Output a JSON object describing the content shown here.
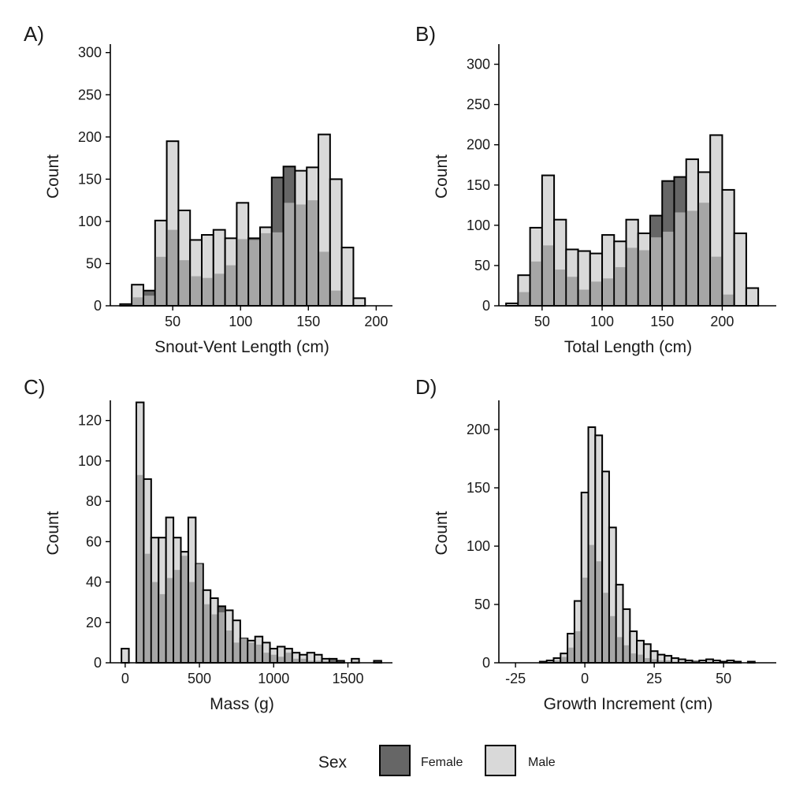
{
  "legend": {
    "title": "Sex",
    "items": [
      {
        "label": "Female",
        "color": "#666666"
      },
      {
        "label": "Male",
        "color": "#d9d9d9"
      }
    ]
  },
  "colors": {
    "female_only": "#666666",
    "male": "#d9d9d9",
    "overlap": "#a6a6a6"
  },
  "chart_data": [
    {
      "panel": "A)",
      "type": "bar",
      "subtype": "overlaid histogram",
      "xlabel": "Snout-Vent Length (cm)",
      "ylabel": "Count",
      "xlim": [
        4,
        212
      ],
      "ylim": [
        0,
        310
      ],
      "xticks": [
        50,
        100,
        150,
        200
      ],
      "yticks": [
        0,
        50,
        100,
        150,
        200,
        250,
        300
      ],
      "bin_width": 8.6,
      "bin_centers": [
        15.5,
        24.1,
        32.7,
        41.3,
        49.9,
        58.5,
        67.1,
        75.7,
        84.3,
        92.9,
        101.5,
        110.1,
        118.7,
        127.3,
        135.9,
        144.5,
        153.1,
        161.7,
        170.3,
        178.9,
        187.5,
        196.1,
        204.7
      ],
      "series": [
        {
          "name": "Female",
          "values": [
            1,
            10,
            18,
            58,
            90,
            54,
            35,
            33,
            38,
            48,
            79,
            80,
            86,
            152,
            165,
            120,
            125,
            64,
            18,
            0,
            0,
            0,
            0
          ]
        },
        {
          "name": "Male",
          "values": [
            2,
            25,
            12,
            101,
            195,
            113,
            78,
            84,
            90,
            80,
            122,
            78,
            93,
            87,
            122,
            160,
            164,
            203,
            150,
            69,
            9,
            0,
            0
          ]
        }
      ]
    },
    {
      "panel": "B)",
      "type": "bar",
      "subtype": "overlaid histogram",
      "xlabel": "Total Length (cm)",
      "ylabel": "Count",
      "xlim": [
        14,
        245
      ],
      "ylim": [
        0,
        325
      ],
      "xticks": [
        50,
        100,
        150,
        200
      ],
      "yticks": [
        0,
        50,
        100,
        150,
        200,
        250,
        300
      ],
      "bin_width": 10.0,
      "bin_centers": [
        25,
        35,
        45,
        55,
        65,
        75,
        85,
        95,
        105,
        115,
        125,
        135,
        145,
        155,
        165,
        175,
        185,
        195,
        205,
        215,
        225,
        235
      ],
      "series": [
        {
          "name": "Female",
          "values": [
            1,
            17,
            55,
            75,
            45,
            36,
            20,
            30,
            34,
            48,
            72,
            69,
            112,
            155,
            160,
            118,
            128,
            61,
            14,
            0,
            0,
            0
          ]
        },
        {
          "name": "Male",
          "values": [
            3,
            38,
            97,
            162,
            107,
            70,
            68,
            65,
            88,
            80,
            107,
            90,
            85,
            92,
            116,
            182,
            166,
            212,
            144,
            90,
            22,
            0
          ]
        }
      ]
    },
    {
      "panel": "C)",
      "type": "bar",
      "subtype": "overlaid histogram",
      "xlabel": "Mass (g)",
      "ylabel": "Count",
      "xlim": [
        -100,
        1800
      ],
      "ylim": [
        0,
        130
      ],
      "xticks": [
        0,
        500,
        1000,
        1500
      ],
      "yticks": [
        0,
        20,
        40,
        60,
        80,
        100,
        120
      ],
      "bin_width": 50,
      "bin_centers": [
        0,
        50,
        100,
        150,
        200,
        250,
        300,
        350,
        400,
        450,
        500,
        550,
        600,
        650,
        700,
        750,
        800,
        850,
        900,
        950,
        1000,
        1050,
        1100,
        1150,
        1200,
        1250,
        1300,
        1350,
        1400,
        1450,
        1500,
        1550,
        1600,
        1650,
        1700
      ],
      "series": [
        {
          "name": "Female",
          "values": [
            0,
            0,
            93,
            54,
            40,
            34,
            42,
            46,
            53,
            40,
            49,
            29,
            24,
            28,
            16,
            10,
            12,
            10,
            9,
            5,
            4,
            3,
            5,
            2,
            2,
            1,
            1,
            1,
            2,
            1,
            0,
            1,
            0,
            0,
            1
          ]
        },
        {
          "name": "Male",
          "values": [
            7,
            0,
            129,
            91,
            62,
            62,
            72,
            62,
            55,
            72,
            49,
            36,
            32,
            25,
            26,
            21,
            12,
            11,
            13,
            10,
            7,
            8,
            7,
            5,
            4,
            5,
            4,
            2,
            0,
            0,
            0,
            2,
            0,
            0,
            0
          ]
        }
      ]
    },
    {
      "panel": "D)",
      "type": "bar",
      "subtype": "overlaid histogram",
      "xlabel": "Growth Increment (cm)",
      "ylabel": "Count",
      "xlim": [
        -31,
        69
      ],
      "ylim": [
        0,
        225
      ],
      "xticks": [
        -25,
        0,
        25,
        50
      ],
      "yticks": [
        0,
        50,
        100,
        150,
        200
      ],
      "bin_width": 2.5,
      "bin_centers": [
        -25,
        -22.5,
        -20,
        -17.5,
        -15,
        -12.5,
        -10,
        -7.5,
        -5,
        -2.5,
        0,
        2.5,
        5,
        7.5,
        10,
        12.5,
        15,
        17.5,
        20,
        22.5,
        25,
        27.5,
        30,
        32.5,
        35,
        37.5,
        40,
        42.5,
        45,
        47.5,
        50,
        52.5,
        55,
        57.5,
        60,
        62.5,
        65
      ],
      "series": [
        {
          "name": "Female",
          "values": [
            0,
            0,
            0,
            0,
            0,
            1,
            2,
            5,
            13,
            27,
            73,
            101,
            87,
            60,
            40,
            22,
            15,
            8,
            7,
            4,
            3,
            2,
            2,
            1,
            1,
            1,
            1,
            0,
            1,
            0,
            0,
            0,
            0,
            0,
            0,
            0,
            0
          ]
        },
        {
          "name": "Male",
          "values": [
            0,
            0,
            0,
            0,
            1,
            2,
            4,
            8,
            25,
            53,
            146,
            202,
            195,
            164,
            116,
            67,
            46,
            27,
            19,
            16,
            10,
            7,
            6,
            4,
            3,
            2,
            1,
            2,
            3,
            2,
            1,
            2,
            1,
            0,
            1,
            0,
            0
          ]
        }
      ]
    }
  ]
}
